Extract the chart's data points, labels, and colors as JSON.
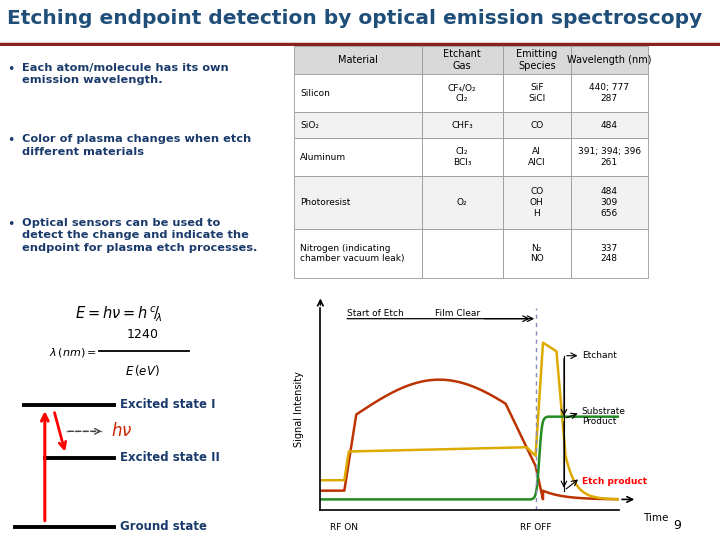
{
  "title": "Etching endpoint detection by optical emission spectroscopy",
  "title_color": "#1F4E79",
  "title_fontsize": 14.5,
  "bg_color": "#FFFFFF",
  "header_line_color": "#8B2020",
  "bullet_color": "#1a3a6b",
  "bullet_points": [
    "Each atom/molecule has its own\nemission wavelength.",
    "Color of plasma changes when etch\ndifferent materials",
    "Optical sensors can be used to\ndetect the change and indicate the\nendpoint for plasma etch processes."
  ],
  "formula_bg": "#FFFF99",
  "table_header_bg": "#D9D9D9",
  "table_col_headers": [
    "Material",
    "Etchant\nGas",
    "Emitting\nSpecies",
    "Wavelength (nm)"
  ],
  "table_rows": [
    [
      "Silicon",
      "CF₄/O₂\nCl₂",
      "SiF\nSiCl",
      "440; 777\n287"
    ],
    [
      "SiO₂",
      "CHF₃",
      "CO",
      "484"
    ],
    [
      "Aluminum",
      "Cl₂\nBCl₃",
      "Al\nAlCl",
      "391; 394; 396\n261"
    ],
    [
      "Photoresist",
      "O₂",
      "CO\nOH\nH",
      "484\n309\n656"
    ],
    [
      "Nitrogen (indicating\nchamber vacuum leak)",
      "",
      "N₂\nNO",
      "337\n248"
    ]
  ],
  "plot_colors": {
    "etchant": "#DDAA00",
    "substrate": "#228B22",
    "etch_product": "#BB3300"
  },
  "page_number": "9"
}
